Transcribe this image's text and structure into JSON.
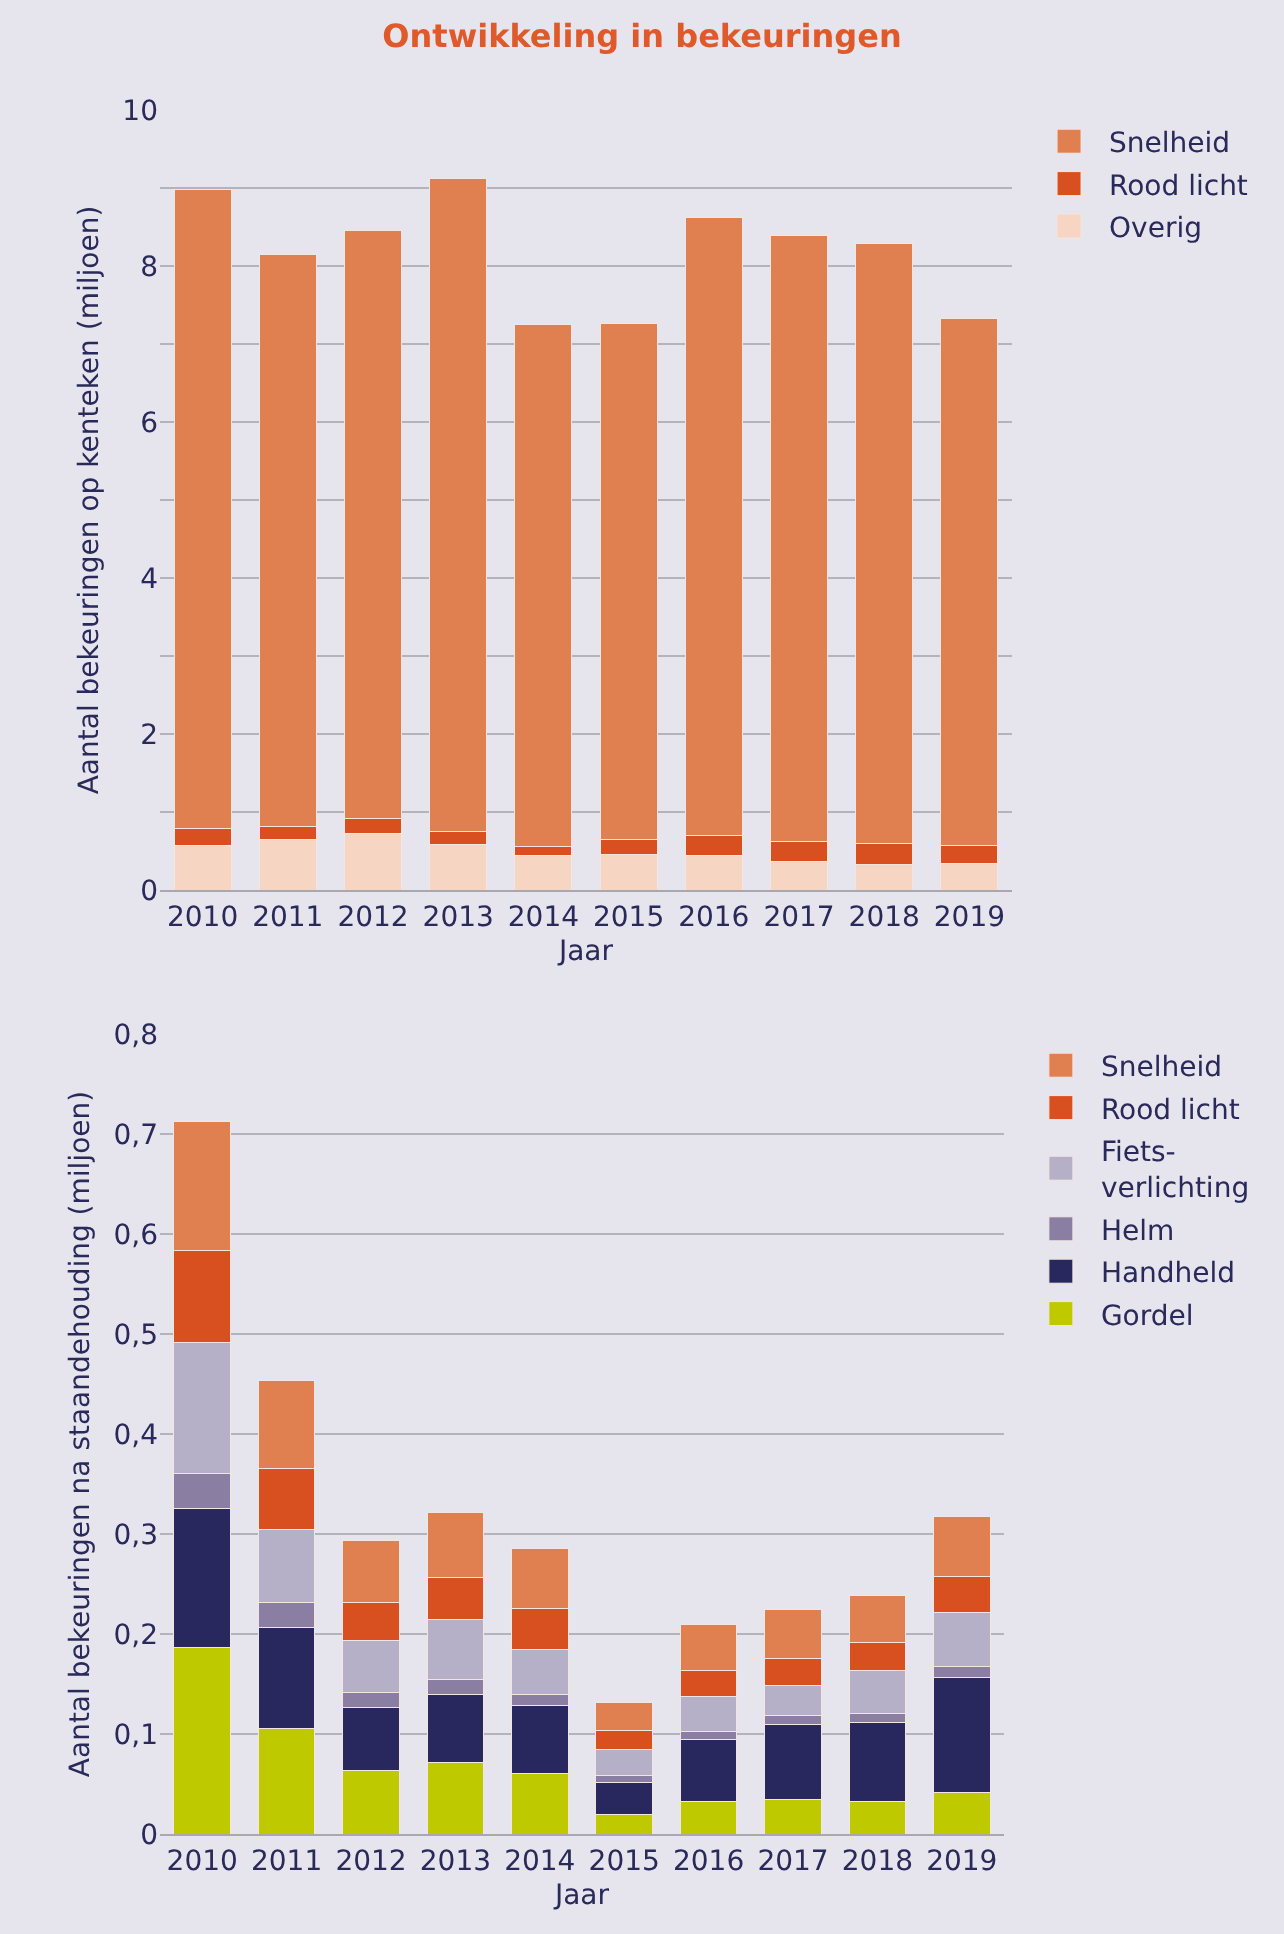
{
  "chart_data": [
    {
      "type": "bar",
      "title": "Ontwikkeling in bekeuringen",
      "xlabel": "Jaar",
      "ylabel": "Aantal bekeuringen op kenteken (miljoen)",
      "categories": [
        "2010",
        "2011",
        "2012",
        "2013",
        "2014",
        "2015",
        "2016",
        "2017",
        "2018",
        "2019"
      ],
      "stacked": true,
      "grid": "y",
      "legend": "top right",
      "ylim": [
        0,
        10
      ],
      "yticks": [
        0,
        {
          "value": 1,
          "label": null
        },
        2,
        {
          "value": 3,
          "label": null
        },
        4,
        {
          "value": 5,
          "label": null
        },
        6,
        {
          "value": 7,
          "label": null
        },
        8,
        {
          "value": 9,
          "label": null
        },
        10
      ],
      "series": [
        {
          "name": "Overig",
          "color": "#f6d5c2",
          "values": [
            0.57,
            0.65,
            0.73,
            0.58,
            0.44,
            0.46,
            0.44,
            0.37,
            0.33,
            0.34
          ]
        },
        {
          "name": "Rood licht",
          "color": "#d84f20",
          "values": [
            0.22,
            0.17,
            0.19,
            0.17,
            0.12,
            0.19,
            0.26,
            0.25,
            0.26,
            0.23
          ]
        },
        {
          "name": "Snelheid",
          "color": "#e07f50",
          "values": [
            8.19,
            7.33,
            7.54,
            8.37,
            6.69,
            6.61,
            7.92,
            7.77,
            7.7,
            6.76
          ]
        }
      ]
    },
    {
      "type": "bar",
      "xlabel": "Jaar",
      "ylabel": "Aantal bekeuringen na staandehouding (miljoen)",
      "categories": [
        "2010",
        "2011",
        "2012",
        "2013",
        "2014",
        "2015",
        "2016",
        "2017",
        "2018",
        "2019"
      ],
      "stacked": true,
      "grid": "y",
      "legend": "top right",
      "ylim": [
        0,
        0.8
      ],
      "yticks": [
        0,
        {
          "value": 0.1,
          "label": "0,1"
        },
        {
          "value": 0.2,
          "label": "0,2"
        },
        {
          "value": 0.3,
          "label": "0,3"
        },
        {
          "value": 0.4,
          "label": "0,4"
        },
        {
          "value": 0.5,
          "label": "0,5"
        },
        {
          "value": 0.6,
          "label": "0,6"
        },
        {
          "value": 0.7,
          "label": "0,7"
        },
        {
          "value": 0.8,
          "label": "0,8"
        }
      ],
      "series": [
        {
          "name": "Gordel",
          "color": "#bfc900",
          "values": [
            0.187,
            0.106,
            0.064,
            0.072,
            0.061,
            0.02,
            0.033,
            0.035,
            0.033,
            0.042
          ]
        },
        {
          "name": "Handheld",
          "color": "#29285e",
          "values": [
            0.139,
            0.101,
            0.063,
            0.068,
            0.068,
            0.032,
            0.062,
            0.075,
            0.079,
            0.115
          ]
        },
        {
          "name": "Helm",
          "color": "#8a7fa3",
          "values": [
            0.035,
            0.025,
            0.015,
            0.015,
            0.011,
            0.007,
            0.008,
            0.009,
            0.009,
            0.011
          ]
        },
        {
          "name": "Fiets-verlichting",
          "color": "#b5afc8",
          "values": [
            0.131,
            0.073,
            0.052,
            0.06,
            0.045,
            0.026,
            0.035,
            0.03,
            0.043,
            0.054
          ]
        },
        {
          "name": "Rood licht",
          "color": "#d84f20",
          "values": [
            0.092,
            0.061,
            0.038,
            0.042,
            0.041,
            0.019,
            0.026,
            0.027,
            0.028,
            0.036
          ]
        },
        {
          "name": "Snelheid",
          "color": "#e07f50",
          "values": [
            0.129,
            0.088,
            0.062,
            0.065,
            0.06,
            0.028,
            0.046,
            0.049,
            0.047,
            0.06
          ]
        }
      ]
    }
  ]
}
